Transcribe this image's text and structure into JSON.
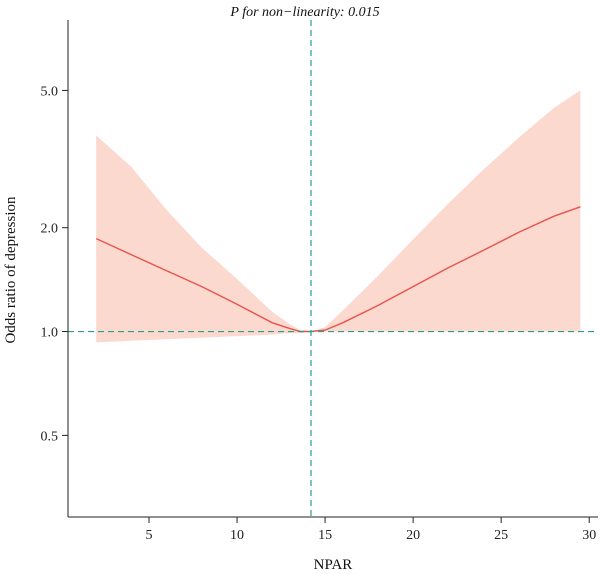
{
  "chart_data": {
    "type": "line",
    "annotation": "P for non−linearity: 0.015",
    "xlabel": "NPAR",
    "ylabel": "Odds ratio of depression",
    "xlim": [
      0.4,
      30.5
    ],
    "ylim": [
      0.29,
      8.0
    ],
    "y_scale": "log",
    "x_ticks": [
      5,
      10,
      15,
      20,
      25,
      30
    ],
    "y_ticks": [
      0.5,
      1.0,
      2.0,
      5.0
    ],
    "y_tick_labels": [
      "0.5",
      "1.0",
      "2.0",
      "5.0"
    ],
    "reference_x": 14.2,
    "reference_y": 1.0,
    "grid": false,
    "colors": {
      "line": "#e8534f",
      "band": "#fcd9cf",
      "reference": "#2a9d8f"
    },
    "series": [
      {
        "x": [
          2,
          4,
          6,
          8,
          10,
          12,
          13,
          13.6,
          14.2,
          15,
          16,
          18,
          20,
          22,
          24,
          26,
          28,
          29.5
        ],
        "y": [
          1.86,
          1.67,
          1.5,
          1.35,
          1.2,
          1.06,
          1.02,
          1.0,
          1.0,
          1.01,
          1.06,
          1.19,
          1.35,
          1.53,
          1.72,
          1.94,
          2.16,
          2.3
        ],
        "lower": [
          0.93,
          0.94,
          0.95,
          0.96,
          0.97,
          0.98,
          0.99,
          0.99,
          1.0,
          1.0,
          1.0,
          1.0,
          1.0,
          1.0,
          1.0,
          1.0,
          1.0,
          1.0
        ],
        "upper": [
          3.7,
          3.0,
          2.25,
          1.75,
          1.42,
          1.14,
          1.05,
          1.01,
          1.0,
          1.03,
          1.15,
          1.45,
          1.85,
          2.35,
          2.95,
          3.65,
          4.45,
          5.0
        ]
      }
    ]
  }
}
